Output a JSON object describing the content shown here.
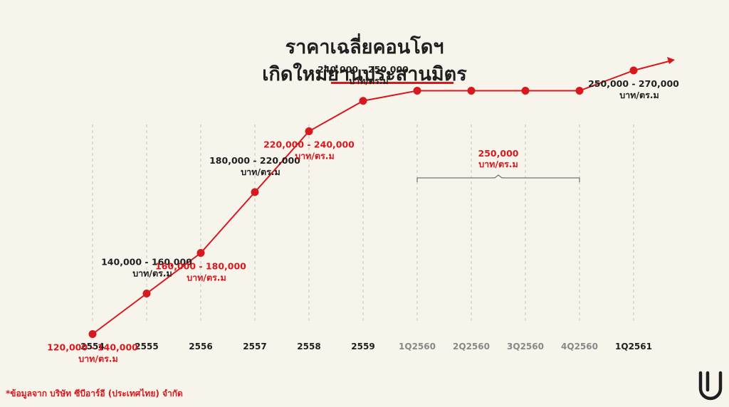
{
  "title": {
    "line1": "ราคาเฉลี่ยคอนโดฯ",
    "line2": "เกิดใหม่ย่านประสานมิตร"
  },
  "footnote": "*ข้อมูลจาก บริษัท ซีบีอาร์อี (ประเทศไทย) จำกัด",
  "colors": {
    "line": "#d7191f",
    "text_dark": "#1f1f1f",
    "text_red": "#d7191f",
    "tick_gray": "#888888",
    "background": "#f7f4ec"
  },
  "chart_data": {
    "type": "line",
    "title": "ราคาเฉลี่ยคอนโดฯ เกิดใหม่ย่านประสานมิตร",
    "xlabel": "",
    "ylabel": "",
    "categories": [
      "2554",
      "2555",
      "2556",
      "2557",
      "2558",
      "2559",
      "1Q2560",
      "2Q2560",
      "3Q2560",
      "4Q2560",
      "1Q2561"
    ],
    "values": [
      130000,
      150000,
      170000,
      200000,
      230000,
      245000,
      250000,
      250000,
      250000,
      250000,
      260000
    ],
    "ylim": [
      100000,
      300000
    ],
    "grid": "vertical dashed",
    "trend_arrow": true,
    "data_labels": [
      {
        "index": 0,
        "range": "120,000 - 140,000",
        "unit": "บาท/ตร.ม",
        "position": "below",
        "color": "red"
      },
      {
        "index": 1,
        "range": "140,000 - 160,000",
        "unit": "บาท/ตร.ม",
        "position": "above",
        "color": "dark"
      },
      {
        "index": 2,
        "range": "160,000 - 180,000",
        "unit": "บาท/ตร.ม",
        "position": "below",
        "color": "red"
      },
      {
        "index": 3,
        "range": "180,000 - 220,000",
        "unit": "บาท/ตร.ม",
        "position": "above",
        "color": "dark"
      },
      {
        "index": 4,
        "range": "220,000 - 240,000",
        "unit": "บาท/ตร.ม",
        "position": "below",
        "color": "red"
      },
      {
        "index": 5,
        "range": "240,000 - 250,000",
        "unit": "บาท/ตร.ม",
        "position": "above",
        "color": "dark"
      },
      {
        "index": 10,
        "range": "250,000 - 270,000",
        "unit": "บาท/ตร.ม",
        "position": "below",
        "color": "dark"
      }
    ],
    "group_label": {
      "from": 6,
      "to": 9,
      "range": "250,000",
      "unit": "บาท/ตร.ม",
      "color": "red"
    },
    "tick_styles": [
      "dark",
      "dark",
      "dark",
      "dark",
      "dark",
      "dark",
      "gray",
      "gray",
      "gray",
      "gray",
      "dark"
    ]
  }
}
